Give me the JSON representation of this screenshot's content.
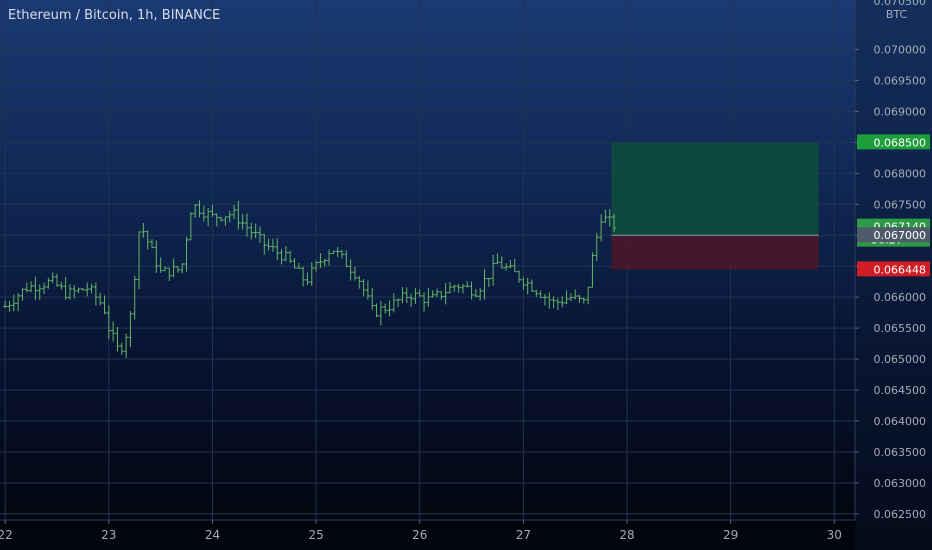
{
  "chart_data": {
    "type": "ohlc",
    "title": "Ethereum / Bitcoin, 1h, BINANCE",
    "currency": "BTC",
    "x_ticks": [
      "22",
      "23",
      "24",
      "25",
      "26",
      "27",
      "28",
      "29",
      "30"
    ],
    "y_ticks": [
      "0.062500",
      "0.063000",
      "0.063500",
      "0.064000",
      "0.064500",
      "0.065000",
      "0.065500",
      "0.066000",
      "0.066500",
      "0.067000",
      "0.067500",
      "0.068000",
      "0.068500",
      "0.069000",
      "0.069500",
      "0.070000"
    ],
    "ylim": [
      0.0624,
      0.0708
    ],
    "top_clipped_label": "0.070500",
    "price_trace": [
      [
        22.0,
        0.06585
      ],
      [
        22.2,
        0.06615
      ],
      [
        22.45,
        0.06625
      ],
      [
        22.6,
        0.06605
      ],
      [
        22.8,
        0.06615
      ],
      [
        22.95,
        0.06585
      ],
      [
        23.0,
        0.0655
      ],
      [
        23.1,
        0.0651
      ],
      [
        23.2,
        0.06555
      ],
      [
        23.3,
        0.0672
      ],
      [
        23.5,
        0.0664
      ],
      [
        23.7,
        0.06645
      ],
      [
        23.8,
        0.0675
      ],
      [
        24.0,
        0.0673
      ],
      [
        24.2,
        0.06735
      ],
      [
        24.5,
        0.06685
      ],
      [
        24.7,
        0.06665
      ],
      [
        24.9,
        0.06625
      ],
      [
        25.0,
        0.0665
      ],
      [
        25.15,
        0.0668
      ],
      [
        25.4,
        0.06635
      ],
      [
        25.55,
        0.06575
      ],
      [
        25.7,
        0.06585
      ],
      [
        25.9,
        0.06605
      ],
      [
        26.1,
        0.06595
      ],
      [
        26.35,
        0.0662
      ],
      [
        26.55,
        0.0661
      ],
      [
        26.75,
        0.06655
      ],
      [
        26.9,
        0.0664
      ],
      [
        27.1,
        0.06615
      ],
      [
        27.3,
        0.0659
      ],
      [
        27.45,
        0.066
      ],
      [
        27.6,
        0.0659
      ],
      [
        27.65,
        0.0665
      ],
      [
        27.75,
        0.0673
      ],
      [
        27.9,
        0.06714
      ]
    ],
    "position_tool": {
      "x_start": 27.85,
      "x_end": 29.85,
      "entry": 0.067,
      "target": 0.0685,
      "stop": 0.066448,
      "target_color": "#0e4e3a",
      "stop_color": "#4e1628"
    },
    "price_labels": [
      {
        "value": 0.0685,
        "text": "0.068500",
        "color": "#1e9e3a"
      },
      {
        "value": 0.06714,
        "text": "0.067140",
        "sub": "56:27",
        "color": "#2d9b45"
      },
      {
        "value": 0.067,
        "text": "0.067000",
        "color": "#4f5b6b"
      },
      {
        "value": 0.066448,
        "text": "0.066448",
        "color": "#d01c25"
      }
    ],
    "colors": {
      "bar": "#63b564",
      "grid": "#223451",
      "axis_text": "#a3aab5"
    }
  }
}
